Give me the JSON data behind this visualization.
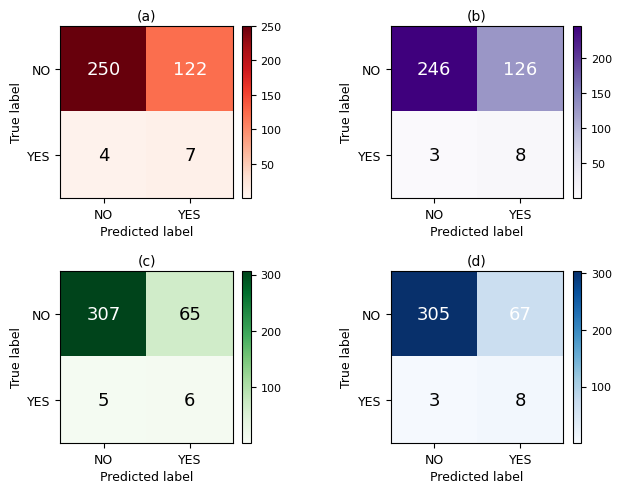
{
  "panels": [
    {
      "label": "(a)",
      "matrix": [
        [
          250,
          122
        ],
        [
          4,
          7
        ]
      ],
      "cmap": "Reds",
      "vmin": 0,
      "vmax": 250,
      "colorbar_ticks": [
        50,
        100,
        150,
        200,
        250
      ],
      "text_colors": [
        [
          "white",
          "white"
        ],
        [
          "black",
          "black"
        ]
      ]
    },
    {
      "label": "(b)",
      "matrix": [
        [
          246,
          126
        ],
        [
          3,
          8
        ]
      ],
      "cmap": "Purples",
      "vmin": 0,
      "vmax": 246,
      "colorbar_ticks": [
        50,
        100,
        150,
        200
      ],
      "text_colors": [
        [
          "white",
          "white"
        ],
        [
          "black",
          "black"
        ]
      ]
    },
    {
      "label": "(c)",
      "matrix": [
        [
          307,
          65
        ],
        [
          5,
          6
        ]
      ],
      "cmap": "Greens",
      "vmin": 0,
      "vmax": 307,
      "colorbar_ticks": [
        100,
        200,
        300
      ],
      "text_colors": [
        [
          "white",
          "black"
        ],
        [
          "black",
          "black"
        ]
      ]
    },
    {
      "label": "(d)",
      "matrix": [
        [
          305,
          67
        ],
        [
          3,
          8
        ]
      ],
      "cmap": "Blues",
      "vmin": 0,
      "vmax": 305,
      "colorbar_ticks": [
        100,
        200,
        300
      ],
      "text_colors": [
        [
          "white",
          "white"
        ],
        [
          "black",
          "black"
        ]
      ]
    }
  ],
  "tick_labels": [
    "NO",
    "YES"
  ],
  "xlabel": "Predicted label",
  "ylabel": "True label",
  "text_fontsize": 13,
  "label_fontsize": 9,
  "title_fontsize": 10,
  "cbar_fontsize": 8
}
